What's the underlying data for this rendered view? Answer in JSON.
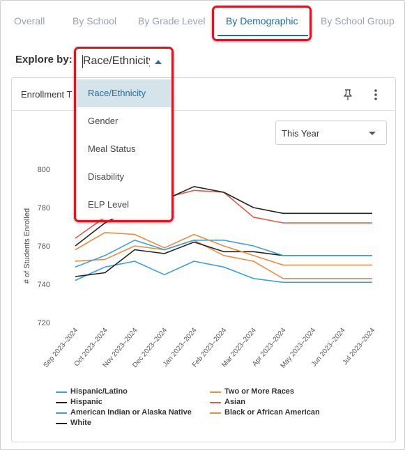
{
  "tabs": [
    {
      "label": "Overall",
      "active": false
    },
    {
      "label": "By School",
      "active": false
    },
    {
      "label": "By Grade Level",
      "active": false
    },
    {
      "label": "By Demographic",
      "active": true
    },
    {
      "label": "By School Group",
      "active": false
    }
  ],
  "explore": {
    "label": "Explore by:",
    "value": "Race/Ethnicity",
    "options": [
      "Race/Ethnicity",
      "Gender",
      "Meal Status",
      "Disability",
      "ELP Level"
    ],
    "selected_index": 0
  },
  "card": {
    "title": "Enrollment T",
    "pin_icon": "pin-icon",
    "menu_icon": "more-vertical-icon",
    "period": "This Year"
  },
  "chart_data": {
    "type": "line",
    "title": "",
    "ylabel": "# of Students Enrolled",
    "xlabel": "",
    "ylim": [
      720,
      800
    ],
    "yticks": [
      720,
      740,
      760,
      780,
      800
    ],
    "grid": false,
    "legend_position": "bottom",
    "x": [
      "Sep 2023–2024",
      "Oct 2023–2024",
      "Nov 2023–2024",
      "Dec 2023–2024",
      "Jan 2023–2024",
      "Feb 2023–2024",
      "Mar 2023–2024",
      "Apr 2023–2024",
      "May 2023–2024",
      "Jun 2023–2024",
      "Jul 2023–2024"
    ],
    "series": [
      {
        "name": "Hispanic/Latino",
        "color": "#3aa0d6",
        "values": [
          742,
          749,
          752,
          745,
          752,
          749,
          743,
          741,
          741,
          741,
          741
        ]
      },
      {
        "name": "Two or More Races",
        "color": "#f08a3c",
        "values": [
          752,
          753,
          760,
          758,
          763,
          755,
          752,
          743,
          743,
          743,
          743
        ]
      },
      {
        "name": "Hispanic",
        "color": "#222222",
        "values": [
          744,
          746,
          758,
          756,
          762,
          757,
          757,
          755,
          755,
          755,
          755
        ]
      },
      {
        "name": "Asian",
        "color": "#e05a44",
        "values": [
          764,
          775,
          781,
          785,
          789,
          788,
          775,
          772,
          772,
          772,
          772
        ]
      },
      {
        "name": "American Indian or Alaska Native",
        "color": "#3aa0d6",
        "values": [
          749,
          755,
          763,
          758,
          763,
          763,
          760,
          755,
          755,
          755,
          755
        ]
      },
      {
        "name": "Black or African American",
        "color": "#f08a3c",
        "values": [
          758,
          767,
          766,
          759,
          766,
          760,
          755,
          750,
          750,
          750,
          750
        ]
      },
      {
        "name": "White",
        "color": "#222222",
        "values": [
          760,
          772,
          780,
          784,
          791,
          788,
          780,
          777,
          777,
          777,
          777
        ]
      }
    ]
  }
}
